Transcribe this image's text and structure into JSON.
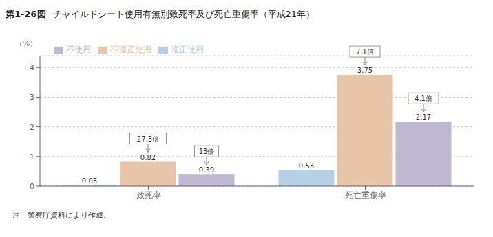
{
  "chart_data": {
    "type": "bar",
    "title": "チャイルドシート使用有無別致死率及び死亡重傷率（平成21年）",
    "title_prefix": "第1-26図",
    "ylabel": "（%）",
    "footnote": "注　警察庁資料により作成。",
    "categories": [
      "致死率",
      "死亡重傷率"
    ],
    "series": [
      {
        "name": "適正使用",
        "color": "#b8cfe8",
        "values": [
          0.03,
          0.53
        ]
      },
      {
        "name": "不適正使用",
        "color": "#e8c4a8",
        "values": [
          0.82,
          3.75
        ]
      },
      {
        "name": "不使用",
        "color": "#c0b8d0",
        "values": [
          0.39,
          2.17
        ]
      }
    ],
    "ylim": [
      0,
      4.4
    ],
    "yticks": [
      0,
      1,
      2,
      3,
      4
    ],
    "grid": true,
    "legend": "upper left",
    "data_labels": true,
    "annotations": [
      {
        "text": "27.3倍",
        "series": "不適正使用",
        "category": "致死率"
      },
      {
        "text": "13倍",
        "series": "不使用",
        "category": "致死率"
      },
      {
        "text": "7.1倍",
        "series": "不適正使用",
        "category": "死亡重傷率"
      },
      {
        "text": "4.1倍",
        "series": "不使用",
        "category": "死亡重傷率"
      }
    ]
  }
}
